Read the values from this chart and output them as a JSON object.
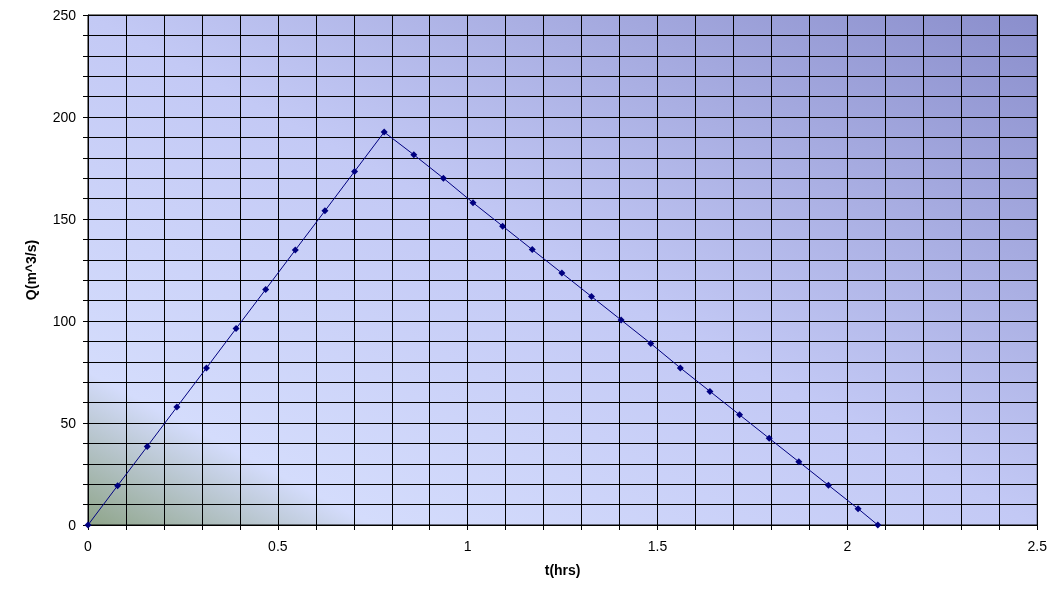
{
  "chart_data": {
    "type": "line",
    "xlabel": "t(hrs)",
    "ylabel": "Q(m^3/s)",
    "x": [
      0,
      0.078,
      0.156,
      0.234,
      0.312,
      0.39,
      0.468,
      0.546,
      0.624,
      0.702,
      0.78,
      0.858,
      0.936,
      1.014,
      1.092,
      1.17,
      1.248,
      1.326,
      1.404,
      1.482,
      1.56,
      1.638,
      1.716,
      1.794,
      1.872,
      1.95,
      2.028,
      2.08
    ],
    "series": [
      {
        "color": "#000080",
        "values": [
          0,
          19.3,
          38.5,
          57.8,
          77,
          96.3,
          115.5,
          134.8,
          154,
          173.3,
          192.6,
          181.5,
          170,
          158,
          146.5,
          135,
          123.5,
          112,
          100.5,
          89,
          77,
          65.5,
          54,
          42.5,
          31,
          19.5,
          8,
          0
        ]
      }
    ],
    "xlim": [
      0,
      2.5
    ],
    "xticks": [
      0,
      {
        "value": 0.1,
        "label": null
      },
      {
        "value": 0.2,
        "label": null
      },
      {
        "value": 0.3,
        "label": null
      },
      {
        "value": 0.4,
        "label": null
      },
      0.5,
      {
        "value": 0.6,
        "label": null
      },
      {
        "value": 0.7,
        "label": null
      },
      {
        "value": 0.8,
        "label": null
      },
      {
        "value": 0.9,
        "label": null
      },
      1,
      {
        "value": 1.1,
        "label": null
      },
      {
        "value": 1.2,
        "label": null
      },
      {
        "value": 1.3,
        "label": null
      },
      {
        "value": 1.4,
        "label": null
      },
      1.5,
      {
        "value": 1.6,
        "label": null
      },
      {
        "value": 1.7,
        "label": null
      },
      {
        "value": 1.8,
        "label": null
      },
      {
        "value": 1.9,
        "label": null
      },
      2,
      {
        "value": 2.1,
        "label": null
      },
      {
        "value": 2.2,
        "label": null
      },
      {
        "value": 2.3,
        "label": null
      },
      {
        "value": 2.4,
        "label": null
      },
      2.5
    ],
    "ylim": [
      0,
      250
    ],
    "yticks": [
      0,
      {
        "value": 10,
        "label": null
      },
      {
        "value": 20,
        "label": null
      },
      {
        "value": 30,
        "label": null
      },
      {
        "value": 40,
        "label": null
      },
      50,
      {
        "value": 60,
        "label": null
      },
      {
        "value": 70,
        "label": null
      },
      {
        "value": 80,
        "label": null
      },
      {
        "value": 90,
        "label": null
      },
      100,
      {
        "value": 110,
        "label": null
      },
      {
        "value": 120,
        "label": null
      },
      {
        "value": 130,
        "label": null
      },
      {
        "value": 140,
        "label": null
      },
      150,
      {
        "value": 160,
        "label": null
      },
      {
        "value": 170,
        "label": null
      },
      {
        "value": 180,
        "label": null
      },
      {
        "value": 190,
        "label": null
      },
      200,
      {
        "value": 210,
        "label": null
      },
      {
        "value": 220,
        "label": null
      },
      {
        "value": 230,
        "label": null
      },
      {
        "value": 240,
        "label": null
      },
      250
    ],
    "grid": true,
    "marker": "diamond",
    "line_style": "solid"
  }
}
